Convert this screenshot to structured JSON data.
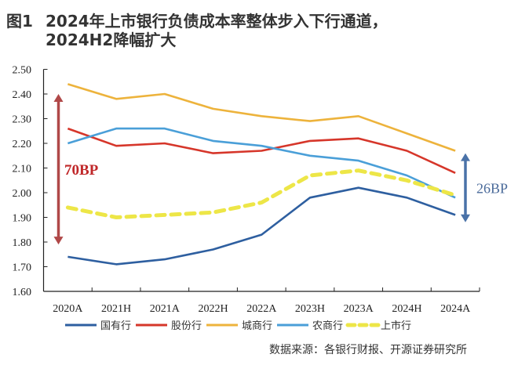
{
  "title": {
    "figure_label": "图1",
    "line1": "2024年上市银行负债成本率整体步入下行通道，",
    "line2": "2024H2降幅扩大"
  },
  "source": "数据来源：各银行财报、开源证券研究所",
  "chart_data": {
    "type": "line",
    "title": "2024年上市银行负债成本率整体步入下行通道，2024H2降幅扩大",
    "xlabel": "",
    "ylabel": "",
    "categories": [
      "2020A",
      "2021H",
      "2021A",
      "2022H",
      "2022A",
      "2023H",
      "2023A",
      "2024H",
      "2024A"
    ],
    "ylim": [
      1.6,
      2.5
    ],
    "yticks": [
      "1.60",
      "1.70",
      "1.80",
      "1.90",
      "2.00",
      "2.10",
      "2.20",
      "2.30",
      "2.40",
      "2.50"
    ],
    "grid": false,
    "legend_position": "bottom",
    "series": [
      {
        "name": "国有行",
        "color": "#2e5fa0",
        "dashed": false,
        "values": [
          1.74,
          1.71,
          1.73,
          1.77,
          1.83,
          1.98,
          2.02,
          1.98,
          1.91
        ]
      },
      {
        "name": "股份行",
        "color": "#d6362a",
        "dashed": false,
        "values": [
          2.26,
          2.19,
          2.2,
          2.16,
          2.17,
          2.21,
          2.22,
          2.17,
          2.08
        ]
      },
      {
        "name": "城商行",
        "color": "#edb33c",
        "dashed": false,
        "values": [
          2.44,
          2.38,
          2.4,
          2.34,
          2.31,
          2.29,
          2.31,
          2.24,
          2.17
        ]
      },
      {
        "name": "农商行",
        "color": "#4a9fd8",
        "dashed": false,
        "values": [
          2.2,
          2.26,
          2.26,
          2.21,
          2.19,
          2.15,
          2.13,
          2.07,
          1.98
        ]
      },
      {
        "name": "上市行",
        "color": "#ede647",
        "dashed": true,
        "values": [
          1.94,
          1.9,
          1.91,
          1.92,
          1.96,
          2.07,
          2.09,
          2.05,
          1.99
        ]
      }
    ],
    "annotations": [
      {
        "text": "70BP",
        "color": "#c0282a",
        "arrow_color": "#b04848",
        "from": 2.4,
        "to": 1.79,
        "at": "left"
      },
      {
        "text": "26BP",
        "color": "#4a6a9a",
        "arrow_color": "#4a72a8",
        "from": 2.16,
        "to": 1.88,
        "at": "right"
      }
    ]
  }
}
